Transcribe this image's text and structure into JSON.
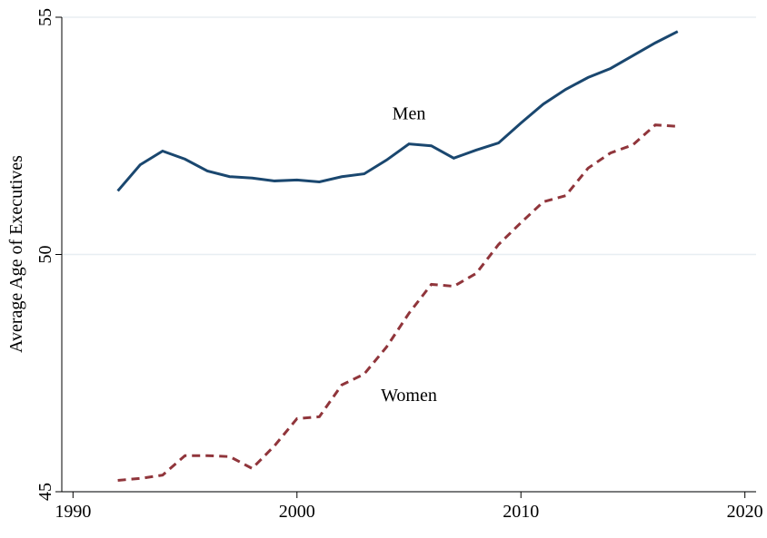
{
  "chart_data": {
    "type": "line",
    "ylabel": "Average Age of Executives",
    "x": [
      1992,
      1993,
      1994,
      1995,
      1996,
      1997,
      1998,
      1999,
      2000,
      2001,
      2002,
      2003,
      2004,
      2005,
      2006,
      2007,
      2008,
      2009,
      2010,
      2011,
      2012,
      2013,
      2014,
      2015,
      2016,
      2017
    ],
    "series": [
      {
        "name": "Men",
        "color": "#1a476f",
        "dash": false,
        "label_at": [
          2005,
          52.94
        ],
        "values": [
          51.34,
          51.89,
          52.18,
          52.01,
          51.76,
          51.64,
          51.61,
          51.55,
          51.57,
          51.53,
          51.64,
          51.7,
          51.99,
          52.33,
          52.29,
          52.03,
          52.2,
          52.35,
          52.77,
          53.17,
          53.48,
          53.73,
          53.92,
          54.19,
          54.46,
          54.7
        ]
      },
      {
        "name": "Women",
        "color": "#90353b",
        "dash": true,
        "label_at": [
          2005,
          47.0
        ],
        "values": [
          45.24,
          45.28,
          45.35,
          45.76,
          45.76,
          45.74,
          45.49,
          45.97,
          46.54,
          46.58,
          47.25,
          47.48,
          48.05,
          48.76,
          49.37,
          49.33,
          49.6,
          50.21,
          50.67,
          51.11,
          51.24,
          51.82,
          52.14,
          52.31,
          52.73,
          52.7
        ]
      }
    ],
    "xlim": [
      1989.5,
      2020.5
    ],
    "xticks": [
      1990,
      2000,
      2010,
      2020
    ],
    "ylim": [
      45,
      55
    ],
    "yticks": [
      45,
      50,
      55
    ],
    "grid": true
  }
}
